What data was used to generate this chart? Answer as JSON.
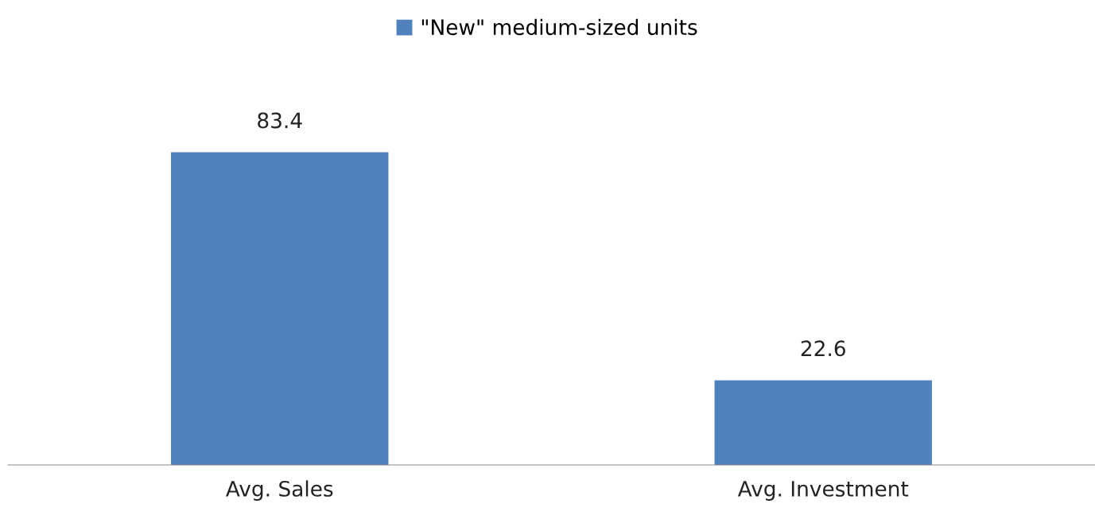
{
  "chart_data": {
    "type": "bar",
    "categories": [
      "Avg. Sales",
      "Avg. Investment"
    ],
    "series": [
      {
        "name": "\"New\" medium-sized units",
        "color": "#4f81bd",
        "values": [
          83.4,
          22.6
        ]
      }
    ],
    "data_labels": true,
    "legend": "top",
    "grid": false,
    "tick_labels": "x"
  }
}
